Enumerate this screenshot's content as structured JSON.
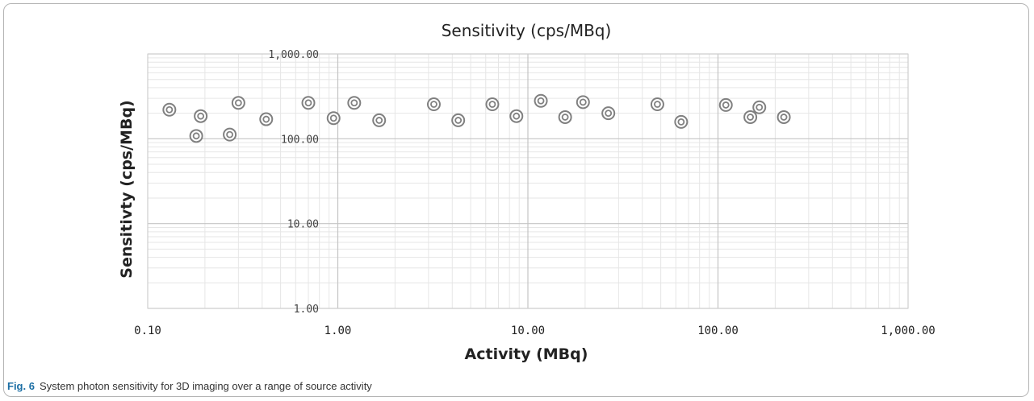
{
  "caption": {
    "label": "Fig. 6",
    "text": "System photon sensitivity for 3D imaging over a range of  source activity"
  },
  "chart_data": {
    "type": "scatter",
    "title": "Sensitivity (cps/MBq)",
    "xlabel": "Activity (MBq)",
    "ylabel": "Sensitivty (cps/MBq)",
    "x_scale": "log",
    "y_scale": "log",
    "xlim": [
      0.1,
      1000
    ],
    "ylim": [
      1,
      1000
    ],
    "x_ticks": [
      {
        "value": 0.1,
        "label": "0.10"
      },
      {
        "value": 1,
        "label": "1.00"
      },
      {
        "value": 10,
        "label": "10.00"
      },
      {
        "value": 100,
        "label": "100.00"
      },
      {
        "value": 1000,
        "label": "1,000.00"
      }
    ],
    "y_ticks": [
      {
        "value": 1,
        "label": "1.00"
      },
      {
        "value": 10,
        "label": "10.00"
      },
      {
        "value": 100,
        "label": "100.00"
      },
      {
        "value": 1000,
        "label": "1,000.00"
      }
    ],
    "grid": true,
    "marker": "double-circle",
    "marker_color": "#808080",
    "series": [
      {
        "points": [
          {
            "x": 0.13,
            "y": 220
          },
          {
            "x": 0.18,
            "y": 108
          },
          {
            "x": 0.19,
            "y": 185
          },
          {
            "x": 0.27,
            "y": 112
          },
          {
            "x": 0.3,
            "y": 265
          },
          {
            "x": 0.42,
            "y": 170
          },
          {
            "x": 0.7,
            "y": 265
          },
          {
            "x": 0.95,
            "y": 175
          },
          {
            "x": 1.22,
            "y": 265
          },
          {
            "x": 1.65,
            "y": 165
          },
          {
            "x": 3.2,
            "y": 255
          },
          {
            "x": 4.3,
            "y": 165
          },
          {
            "x": 6.5,
            "y": 255
          },
          {
            "x": 8.7,
            "y": 185
          },
          {
            "x": 11.7,
            "y": 280
          },
          {
            "x": 15.7,
            "y": 180
          },
          {
            "x": 19.5,
            "y": 270
          },
          {
            "x": 26.5,
            "y": 200
          },
          {
            "x": 48.0,
            "y": 255
          },
          {
            "x": 64.0,
            "y": 158
          },
          {
            "x": 110.0,
            "y": 250
          },
          {
            "x": 148.0,
            "y": 180
          },
          {
            "x": 165.0,
            "y": 235
          },
          {
            "x": 222.0,
            "y": 180
          }
        ]
      }
    ]
  }
}
